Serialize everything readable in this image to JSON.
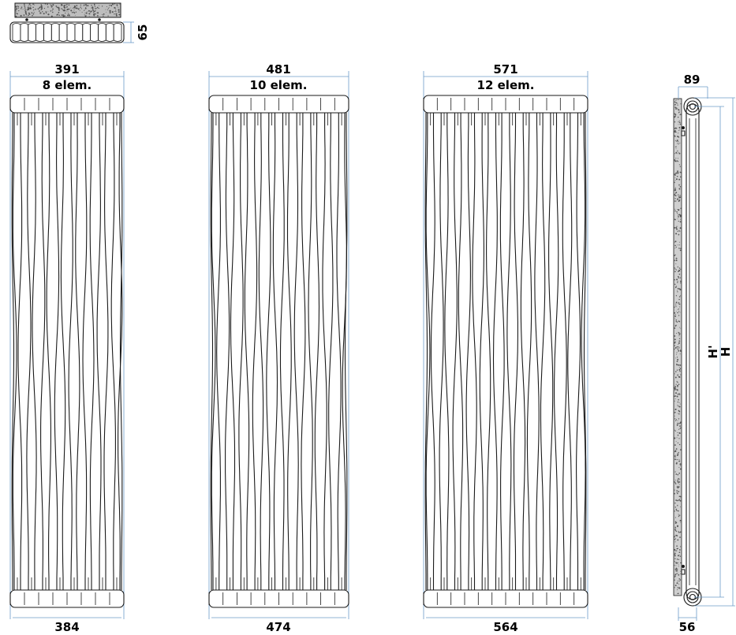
{
  "top_view": {
    "depth": "65"
  },
  "radiators": [
    {
      "top_width": "391",
      "elements": "8 elem.",
      "bottom_width": "384",
      "count": 8
    },
    {
      "top_width": "481",
      "elements": "10 elem.",
      "bottom_width": "474",
      "count": 10
    },
    {
      "top_width": "571",
      "elements": "12 elem.",
      "bottom_width": "564",
      "count": 12
    }
  ],
  "side_view": {
    "top_depth": "89",
    "bottom_depth": "56",
    "height_inner": "H'",
    "height_total": "H"
  },
  "colors": {
    "line": "#1a1a1a",
    "dimension": "#6b9bc9",
    "wall_speckle": "#555555"
  }
}
